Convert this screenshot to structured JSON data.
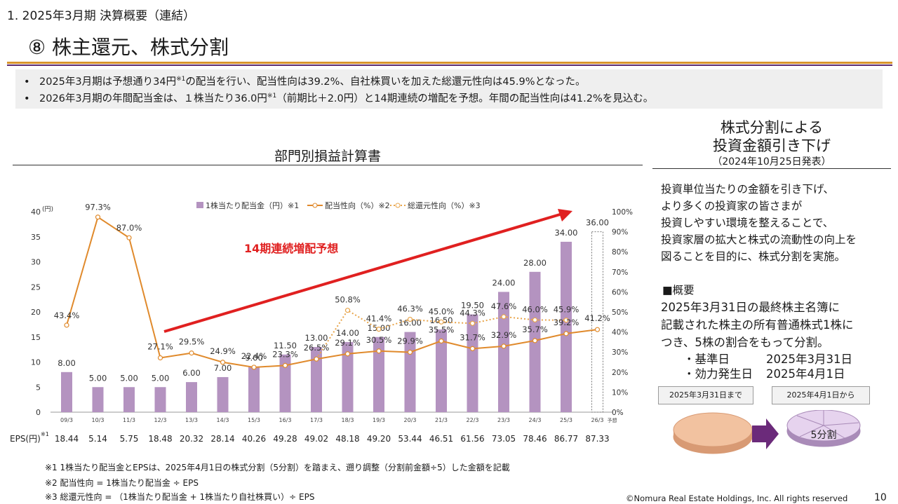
{
  "header": {
    "section": "1.  2025年3月期 決算概要（連結）",
    "title": "⑧ 株主還元、株式分割"
  },
  "summary": {
    "bullet_glyph": "•",
    "bullet1": {
      "before": "2025年3月期は予想通り34円",
      "sup": "※1",
      "after": "の配当を行い、配当性向は39.2%、自社株買いを加えた総還元性向は45.9%となった。"
    },
    "bullet2": {
      "before": "2026年3月期の年間配当金は、１株当たり36.0円",
      "sup": "※1",
      "after": "（前期比＋2.0円）と14期連続の増配を予想。年間の配当性向は41.2%を見込む。"
    }
  },
  "chart_section_title": "部門別損益計算書",
  "chart_data": {
    "type": "bar",
    "categories": [
      "09/3",
      "10/3",
      "11/3",
      "12/3",
      "13/3",
      "14/3",
      "15/3",
      "16/3",
      "17/3",
      "18/3",
      "19/3",
      "20/3",
      "21/3",
      "22/3",
      "23/3",
      "24/3",
      "25/3",
      "26/3"
    ],
    "forecast_label": "予想",
    "series": [
      {
        "name": "1株当たり配当金（円）※1",
        "values": [
          8.0,
          5.0,
          5.0,
          5.0,
          6.0,
          7.0,
          9.0,
          11.5,
          13.0,
          14.0,
          15.0,
          16.0,
          16.5,
          19.5,
          24.0,
          28.0,
          34.0,
          36.0
        ],
        "labels": [
          "8.00",
          "5.00",
          "5.00",
          "5.00",
          "6.00",
          "7.00",
          "9.00",
          "11.50",
          "13.00",
          "14.00",
          "15.00",
          "16.00",
          "16.50",
          "19.50",
          "24.00",
          "28.00",
          "34.00",
          "36.00"
        ]
      },
      {
        "name": "配当性向（%）※2",
        "values": [
          43.4,
          97.3,
          87.0,
          27.1,
          29.5,
          24.9,
          22.4,
          23.3,
          26.5,
          29.1,
          30.5,
          29.9,
          35.5,
          31.7,
          32.9,
          35.7,
          39.2,
          41.2
        ],
        "labels": [
          "43.4%",
          "97.3%",
          "87.0%",
          "27.1%",
          "29.5%",
          "24.9%",
          "22.4%",
          "23.3%",
          "26.5%",
          "29.1%",
          "30.5%",
          "29.9%",
          "35.5%",
          "31.7%",
          "32.9%",
          "35.7%",
          "39.2%",
          "41.2%"
        ]
      },
      {
        "name": "総還元性向（%）※3",
        "values": [
          null,
          null,
          null,
          null,
          null,
          null,
          null,
          null,
          26.5,
          50.8,
          41.4,
          46.3,
          45.0,
          44.3,
          47.6,
          46.0,
          45.9,
          null
        ],
        "labels": [
          "",
          "",
          "",
          "",
          "",
          "",
          "",
          "",
          "",
          "50.8%",
          "41.4%",
          "46.3%",
          "45.0%",
          "44.3%",
          "47.6%",
          "46.0%",
          "45.9%",
          ""
        ]
      }
    ],
    "y_left": {
      "unit": "(円)",
      "ticks": [
        "0",
        "5",
        "10",
        "15",
        "20",
        "25",
        "30",
        "35",
        "40"
      ],
      "range": [
        0,
        40
      ]
    },
    "y_right": {
      "ticks": [
        "0%",
        "10%",
        "20%",
        "30%",
        "40%",
        "50%",
        "60%",
        "70%",
        "80%",
        "90%",
        "100%"
      ],
      "range": [
        0,
        100
      ]
    },
    "annotation": "14期連続増配予想",
    "eps_label": "EPS(円)",
    "eps_sup": "※1",
    "eps": [
      "18.44",
      "5.14",
      "5.75",
      "18.48",
      "20.32",
      "28.14",
      "40.26",
      "49.28",
      "49.02",
      "48.18",
      "49.20",
      "53.44",
      "46.51",
      "61.56",
      "73.05",
      "78.46",
      "86.77",
      "87.33"
    ],
    "colors": {
      "bar": "#b493c0",
      "payout": "#e08a2c",
      "total": "#e8a44a",
      "arrow": "#e02020"
    }
  },
  "side": {
    "title_line1": "株式分割による",
    "title_line2": "投資金額引き下げ",
    "date": "（2024年10月25日発表）",
    "desc": [
      "投資単位当たりの金額を引き下げ、",
      "より多くの投資家の皆さまが",
      "投資しやすい環境を整えることで、",
      "投資家層の拡大と株式の流動性の向上を",
      "図ることを目的に、株式分割を実施。"
    ],
    "outline_heading": "■概要",
    "outline": [
      "2025年3月31日の最終株主名簿に",
      "記載された株主の所有普通株式1株に",
      "つき、5株の割合をもって分割。"
    ],
    "record_date_label": "・基準日",
    "record_date": "2025年3月31日",
    "effective_date_label": "・効力発生日",
    "effective_date": "2025年4月1日",
    "before_label": "2025年3月31日まで",
    "after_label": "2025年4月1日から",
    "split_label": "5分割",
    "colors": {
      "disc": "#f2c2a0",
      "disc_edge": "#d89a74",
      "split": "#e6d3ee",
      "split_edge": "#a98bb8",
      "arrow": "#6b2a7a"
    }
  },
  "notes": [
    "※1 1株当たり配当金とEPSは、2025年4月1日の株式分割（5分割）を踏まえ、遡り調整（分割前金額÷5）した金額を記載",
    "※2  配当性向 = 1株当たり配当金 ÷ EPS",
    "※3  総還元性向 = （1株当たり配当金 + 1株当たり自社株買い）÷ EPS"
  ],
  "footer": {
    "copyright": "©Nomura Real Estate Holdings, Inc. All rights reserved",
    "page": "10"
  }
}
